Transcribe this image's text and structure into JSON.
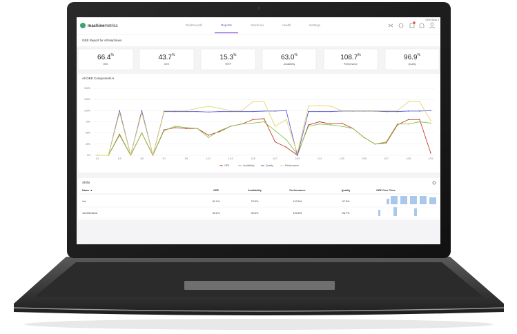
{
  "header": {
    "logo": [
      "machine",
      "metrics"
    ],
    "nav": [
      "Dashboards",
      "Reports",
      "Machines",
      "Health",
      "Settings"
    ],
    "active": 1,
    "shop": "OEE Shop 2"
  },
  "report_title": "OEE Report for All Machines",
  "cards": [
    {
      "value": "66.4",
      "unit": "%",
      "label": "OEE"
    },
    {
      "value": "43.7",
      "unit": "%",
      "label": "OEE"
    },
    {
      "value": "15.3",
      "unit": "%",
      "label": "TEEP"
    },
    {
      "value": "63.0",
      "unit": "%",
      "label": "Availability"
    },
    {
      "value": "108.7",
      "unit": "%",
      "label": "Performance"
    },
    {
      "value": "96.9",
      "unit": "%",
      "label": "Quality"
    }
  ],
  "chart_panel": "All OEE Components ▾",
  "chart_data": {
    "type": "line",
    "categories": [
      "1/1",
      null,
      "1/3",
      null,
      "1/5",
      null,
      "1/7",
      null,
      "1/9",
      null,
      "1/11",
      null,
      "1/13",
      null,
      "1/15",
      null,
      "1/17",
      null,
      "1/19",
      null,
      "1/21",
      null,
      "1/23",
      null,
      "1/25",
      null,
      "1/27",
      null,
      "1/29",
      null,
      "1/31"
    ],
    "ylim": [
      0,
      150
    ],
    "yticks": [
      {
        "value": 0,
        "label": "0%"
      },
      {
        "value": 25,
        "label": "25%"
      },
      {
        "value": 50,
        "label": "50%"
      },
      {
        "value": 75,
        "label": "75%"
      },
      {
        "value": 100,
        "label": "100%"
      },
      {
        "value": 125,
        "label": "125%"
      },
      {
        "value": 150,
        "label": "150%"
      }
    ],
    "grid": true,
    "series": [
      {
        "name": "OEE",
        "color": "#c0392b",
        "values": [
          0,
          0,
          47,
          0,
          50,
          0,
          57,
          62,
          60,
          60,
          45,
          53,
          65,
          70,
          80,
          82,
          30,
          18,
          0,
          68,
          75,
          70,
          72,
          60,
          40,
          25,
          28,
          68,
          80,
          80,
          5
        ]
      },
      {
        "name": "Availability",
        "color": "#8bc34a",
        "values": [
          0,
          0,
          45,
          0,
          50,
          0,
          55,
          65,
          62,
          60,
          40,
          55,
          65,
          70,
          72,
          75,
          55,
          35,
          2,
          65,
          70,
          68,
          65,
          60,
          40,
          25,
          30,
          70,
          70,
          75,
          72
        ]
      },
      {
        "name": "Quality",
        "color": "#5b5bd6",
        "values": [
          0,
          0,
          100,
          0,
          100,
          0,
          98,
          98,
          98,
          98,
          97,
          98,
          98,
          98,
          98,
          99,
          99,
          100,
          0,
          98,
          98,
          98,
          99,
          99,
          99,
          99,
          98,
          98,
          99,
          99,
          100
        ]
      },
      {
        "name": "Performance",
        "color": "#e3d56b",
        "values": [
          0,
          0,
          95,
          0,
          95,
          0,
          100,
          100,
          100,
          105,
          110,
          105,
          100,
          100,
          120,
          120,
          65,
          80,
          5,
          110,
          112,
          110,
          100,
          100,
          100,
          100,
          100,
          100,
          120,
          120,
          78
        ]
      }
    ]
  },
  "shifts": {
    "title": "Shifts",
    "columns": [
      "Name ▲",
      "OEE",
      "Availability",
      "Performance",
      "Quality",
      "OEE Over Time"
    ],
    "rows": [
      [
        "1st",
        "81.1%",
        "75.5%",
        "110.6%",
        "97.3%"
      ],
      [
        "1st Weekend",
        "40.2%",
        "40.6%",
        "100.6%",
        "98.7%"
      ]
    ]
  }
}
